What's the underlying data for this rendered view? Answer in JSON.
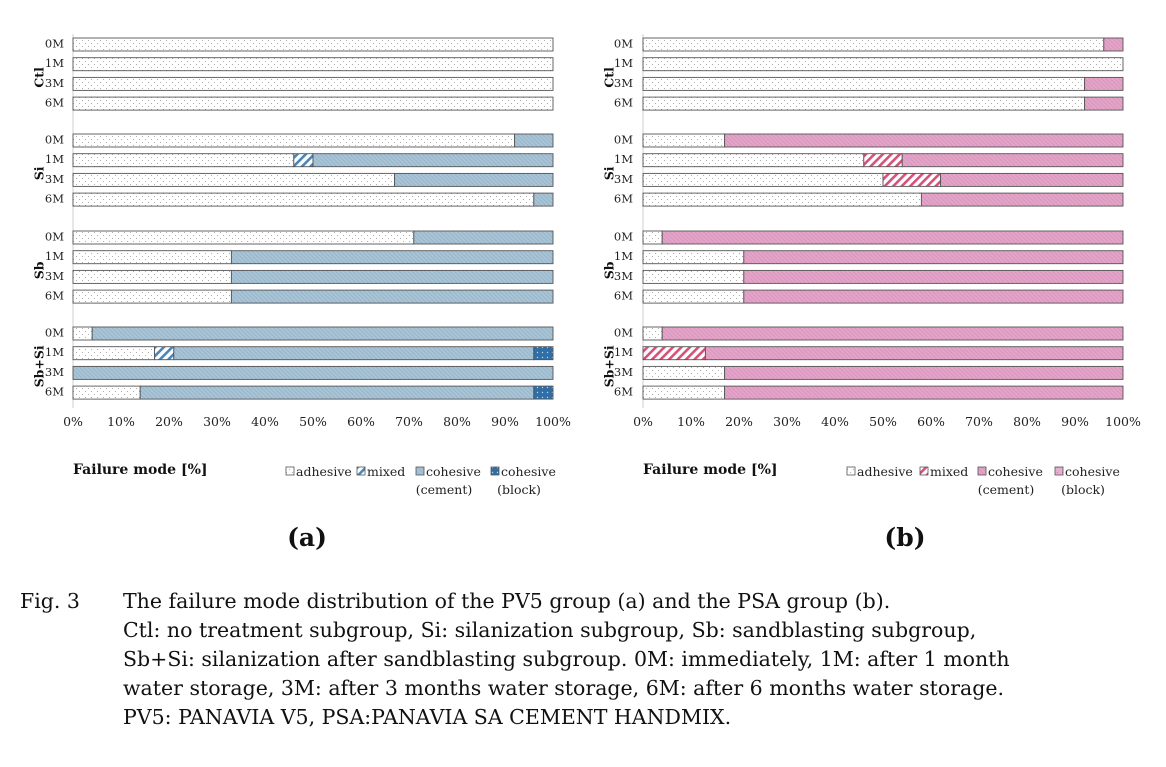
{
  "chart_data": [
    {
      "type": "bar",
      "orientation": "horizontal",
      "stacked": true,
      "panel_label": "(a)",
      "xlabel": "Failure mode [%]",
      "xlim": [
        0,
        100
      ],
      "xticks": [
        "0%",
        "10%",
        "20%",
        "30%",
        "40%",
        "50%",
        "60%",
        "70%",
        "80%",
        "90%",
        "100%"
      ],
      "groups": [
        "Ctl",
        "Si",
        "Sb",
        "Sb+Si"
      ],
      "periods": [
        "0M",
        "1M",
        "3M",
        "6M"
      ],
      "colors": {
        "adhesive": "#ffffff",
        "mixed": "#4a86b8",
        "cohesive_cement": "#a9c4d6",
        "cohesive_block": "#2f6ea6"
      },
      "legend": [
        {
          "key": "adhesive",
          "label": "adhesive",
          "label2": ""
        },
        {
          "key": "mixed",
          "label": "mixed",
          "label2": ""
        },
        {
          "key": "cohesive_cement",
          "label": "cohesive",
          "label2": "(cement)"
        },
        {
          "key": "cohesive_block",
          "label": "cohesive",
          "label2": "(block)"
        }
      ],
      "series": [
        {
          "key": "adhesive",
          "values": [
            [
              100,
              100,
              100,
              100
            ],
            [
              92,
              46,
              67,
              96
            ],
            [
              71,
              33,
              33,
              33
            ],
            [
              4,
              17,
              0,
              14
            ]
          ]
        },
        {
          "key": "mixed",
          "values": [
            [
              0,
              0,
              0,
              0
            ],
            [
              0,
              4,
              0,
              0
            ],
            [
              0,
              0,
              0,
              0
            ],
            [
              0,
              4,
              0,
              0
            ]
          ]
        },
        {
          "key": "cohesive_cement",
          "values": [
            [
              0,
              0,
              0,
              0
            ],
            [
              8,
              50,
              33,
              4
            ],
            [
              29,
              67,
              67,
              67
            ],
            [
              96,
              75,
              100,
              82
            ]
          ]
        },
        {
          "key": "cohesive_block",
          "values": [
            [
              0,
              0,
              0,
              0
            ],
            [
              0,
              0,
              0,
              0
            ],
            [
              0,
              0,
              0,
              0
            ],
            [
              0,
              4,
              0,
              4
            ]
          ]
        }
      ]
    },
    {
      "type": "bar",
      "orientation": "horizontal",
      "stacked": true,
      "panel_label": "(b)",
      "xlabel": "Failure mode [%]",
      "xlim": [
        0,
        100
      ],
      "xticks": [
        "0%",
        "10%",
        "20%",
        "30%",
        "40%",
        "50%",
        "60%",
        "70%",
        "80%",
        "90%",
        "100%"
      ],
      "groups": [
        "Ctl",
        "Si",
        "Sb",
        "Sb+Si"
      ],
      "periods": [
        "0M",
        "1M",
        "3M",
        "6M"
      ],
      "colors": {
        "adhesive": "#ffffff",
        "mixed": "#d5517a",
        "cohesive_cement": "#e3a4c8",
        "cohesive_block": "#ecbfd6"
      },
      "legend": [
        {
          "key": "adhesive",
          "label": "adhesive",
          "label2": ""
        },
        {
          "key": "mixed",
          "label": "mixed",
          "label2": ""
        },
        {
          "key": "cohesive_cement",
          "label": "cohesive",
          "label2": "(cement)"
        },
        {
          "key": "cohesive_block",
          "label": "cohesive",
          "label2": "(block)"
        }
      ],
      "series": [
        {
          "key": "adhesive",
          "values": [
            [
              96,
              100,
              92,
              92
            ],
            [
              17,
              46,
              50,
              58
            ],
            [
              4,
              21,
              21,
              21
            ],
            [
              4,
              0,
              17,
              17
            ]
          ]
        },
        {
          "key": "mixed",
          "values": [
            [
              0,
              0,
              0,
              0
            ],
            [
              0,
              8,
              12,
              0
            ],
            [
              0,
              0,
              0,
              0
            ],
            [
              0,
              13,
              0,
              0
            ]
          ]
        },
        {
          "key": "cohesive_cement",
          "values": [
            [
              4,
              0,
              8,
              8
            ],
            [
              83,
              46,
              38,
              42
            ],
            [
              96,
              79,
              79,
              79
            ],
            [
              96,
              87,
              83,
              83
            ]
          ]
        },
        {
          "key": "cohesive_block",
          "values": [
            [
              0,
              0,
              0,
              0
            ],
            [
              0,
              0,
              0,
              0
            ],
            [
              0,
              0,
              0,
              0
            ],
            [
              0,
              0,
              0,
              0
            ]
          ]
        }
      ]
    }
  ],
  "caption": {
    "label": "Fig. 3",
    "title": "The failure mode distribution of the PV5 group (a) and the PSA group (b).",
    "line1": "Ctl: no treatment subgroup, Si: silanization subgroup, Sb: sandblasting subgroup,",
    "line2": "Sb+Si: silanization after sandblasting subgroup. 0M: immediately, 1M: after 1 month",
    "line3": "water storage, 3M: after 3 months water storage, 6M: after 6 months water storage.",
    "line4": "PV5: PANAVIA V5, PSA:PANAVIA SA CEMENT HANDMIX."
  }
}
